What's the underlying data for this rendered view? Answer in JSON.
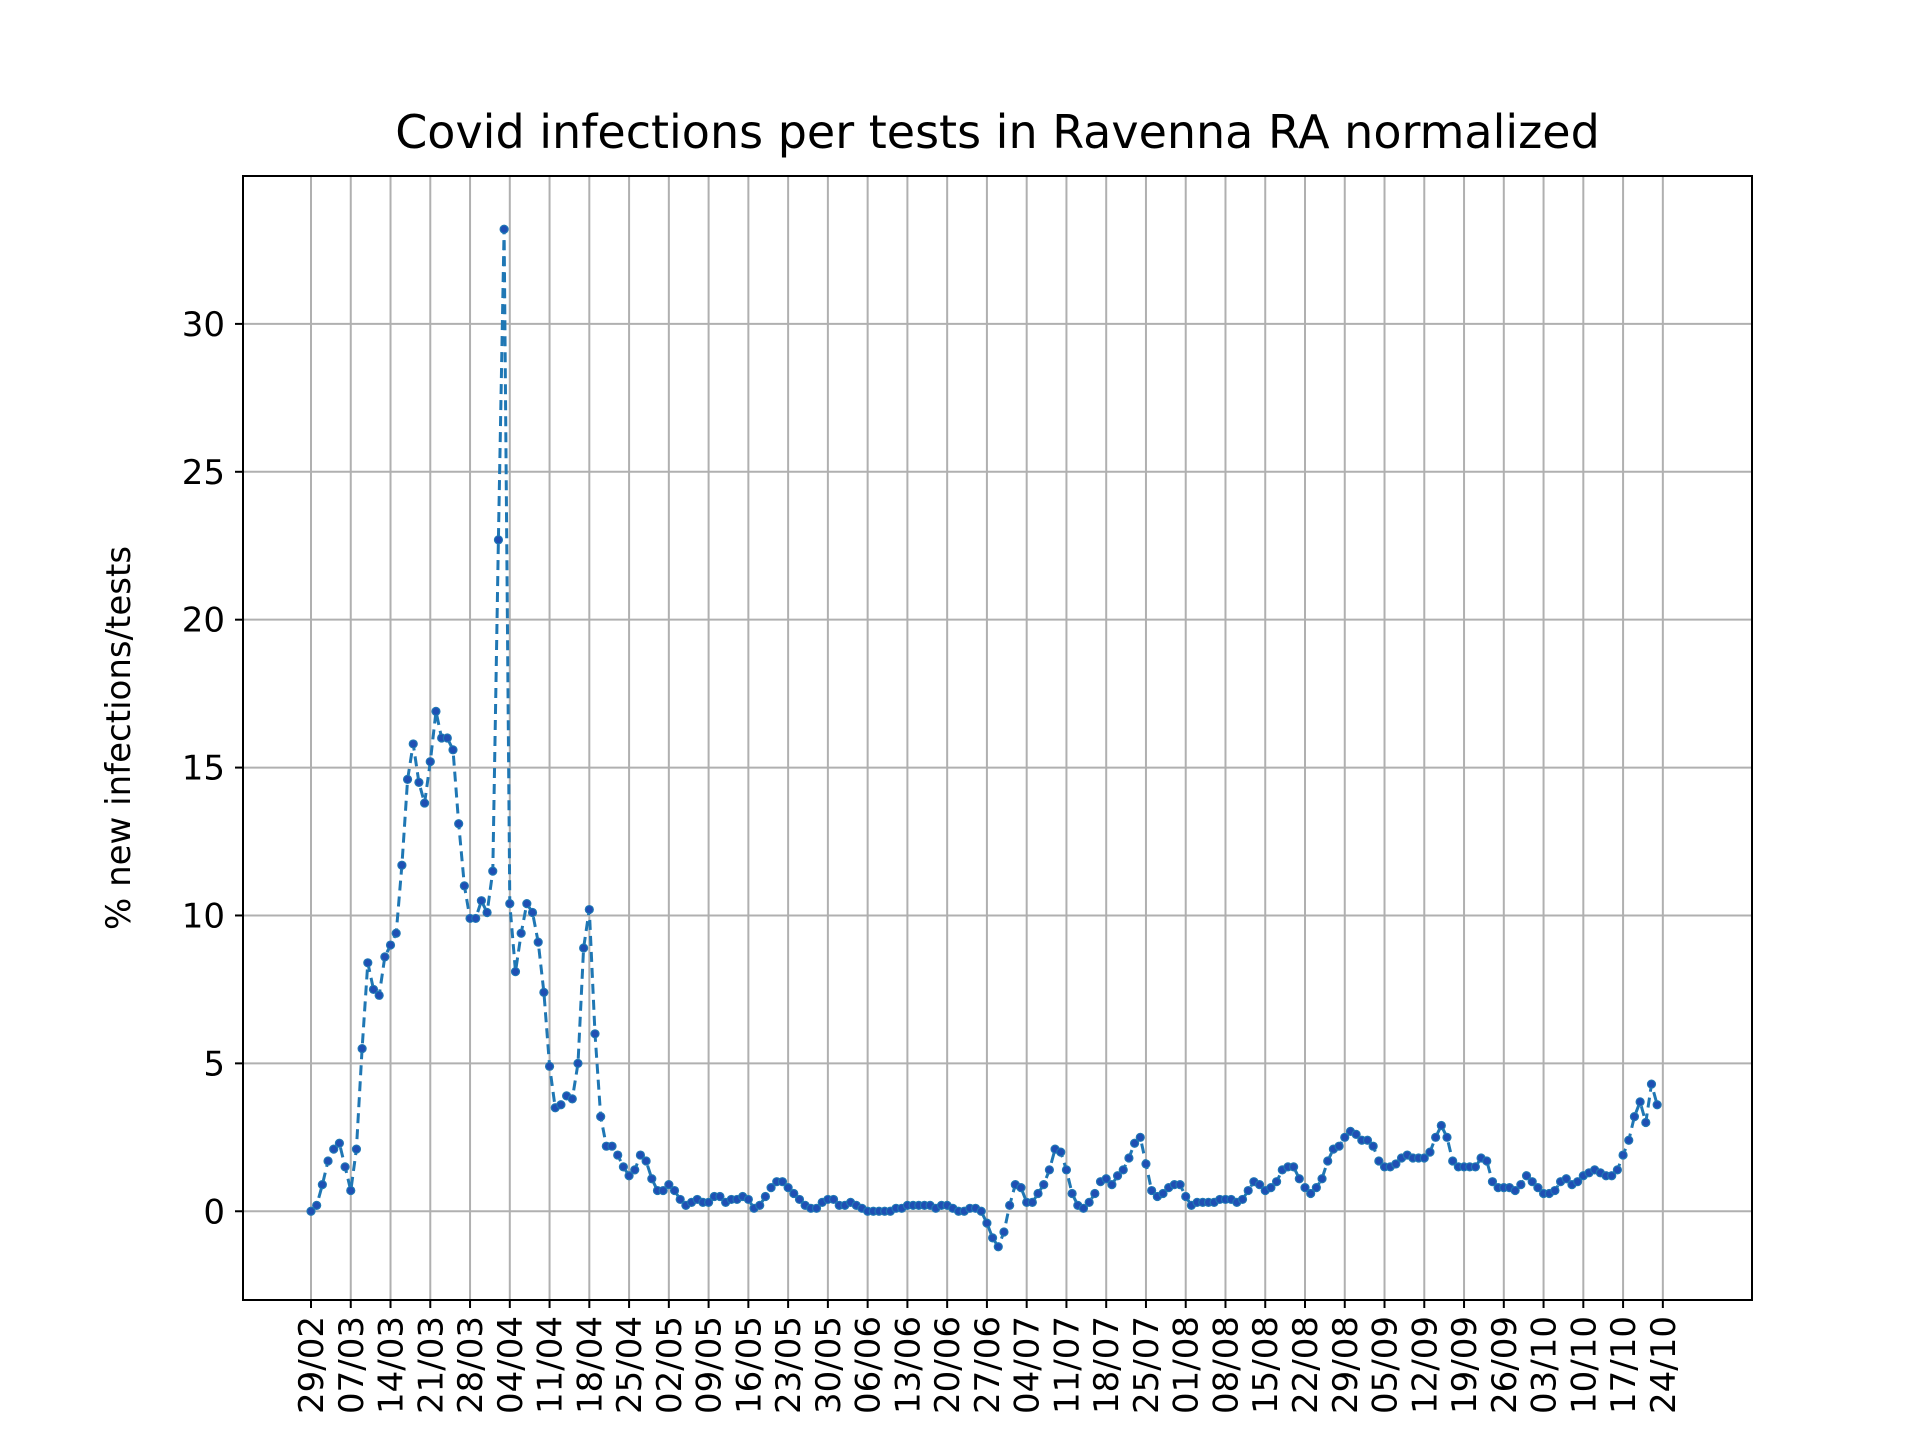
{
  "chart_data": {
    "type": "line",
    "title": "Covid infections per tests in Ravenna RA normalized",
    "xlabel": "",
    "ylabel": "% new infections/tests",
    "ylim": [
      -3,
      35
    ],
    "yticks": [
      0,
      5,
      10,
      15,
      20,
      25,
      30
    ],
    "grid": true,
    "legend": "none",
    "x_start": "29/02",
    "xticks": [
      "29/02",
      "07/03",
      "14/03",
      "21/03",
      "28/03",
      "04/04",
      "11/04",
      "18/04",
      "25/04",
      "02/05",
      "09/05",
      "16/05",
      "23/05",
      "30/05",
      "06/06",
      "13/06",
      "20/06",
      "27/06",
      "04/07",
      "11/07",
      "18/07",
      "25/07",
      "01/08",
      "08/08",
      "15/08",
      "22/08",
      "29/08",
      "05/09",
      "12/09",
      "19/09",
      "26/09",
      "03/10",
      "10/10",
      "17/10",
      "24/10"
    ],
    "series": [
      {
        "name": "",
        "color": "#1f77b4",
        "marker_color": "#1f4fb4",
        "values": [
          0.0,
          0.2,
          0.9,
          1.7,
          2.1,
          2.3,
          1.5,
          0.7,
          2.1,
          5.5,
          8.4,
          7.5,
          7.3,
          8.6,
          9.0,
          9.4,
          11.7,
          14.6,
          15.8,
          14.5,
          13.8,
          15.2,
          16.9,
          16.0,
          16.0,
          15.6,
          13.1,
          11.0,
          9.9,
          9.9,
          10.5,
          10.1,
          11.5,
          22.7,
          33.2,
          10.4,
          8.1,
          9.4,
          10.4,
          10.1,
          9.1,
          7.4,
          4.9,
          3.5,
          3.6,
          3.9,
          3.8,
          5.0,
          8.9,
          10.2,
          6.0,
          3.2,
          2.2,
          2.2,
          1.9,
          1.5,
          1.2,
          1.4,
          1.9,
          1.7,
          1.1,
          0.7,
          0.7,
          0.9,
          0.7,
          0.4,
          0.2,
          0.3,
          0.4,
          0.3,
          0.3,
          0.5,
          0.5,
          0.3,
          0.4,
          0.4,
          0.5,
          0.4,
          0.1,
          0.2,
          0.5,
          0.8,
          1.0,
          1.0,
          0.8,
          0.6,
          0.4,
          0.2,
          0.1,
          0.1,
          0.3,
          0.4,
          0.4,
          0.2,
          0.2,
          0.3,
          0.2,
          0.1,
          0.0,
          0.0,
          0.0,
          0.0,
          0.0,
          0.1,
          0.1,
          0.2,
          0.2,
          0.2,
          0.2,
          0.2,
          0.1,
          0.2,
          0.2,
          0.1,
          0.0,
          0.0,
          0.1,
          0.1,
          0.0,
          -0.4,
          -0.9,
          -1.2,
          -0.7,
          0.2,
          0.9,
          0.8,
          0.3,
          0.3,
          0.6,
          0.9,
          1.4,
          2.1,
          2.0,
          1.4,
          0.6,
          0.2,
          0.1,
          0.3,
          0.6,
          1.0,
          1.1,
          0.9,
          1.2,
          1.4,
          1.8,
          2.3,
          2.5,
          1.6,
          0.7,
          0.5,
          0.6,
          0.8,
          0.9,
          0.9,
          0.5,
          0.2,
          0.3,
          0.3,
          0.3,
          0.3,
          0.4,
          0.4,
          0.4,
          0.3,
          0.4,
          0.7,
          1.0,
          0.9,
          0.7,
          0.8,
          1.0,
          1.4,
          1.5,
          1.5,
          1.1,
          0.8,
          0.6,
          0.8,
          1.1,
          1.7,
          2.1,
          2.2,
          2.5,
          2.7,
          2.6,
          2.4,
          2.4,
          2.2,
          1.7,
          1.5,
          1.5,
          1.6,
          1.8,
          1.9,
          1.8,
          1.8,
          1.8,
          2.0,
          2.5,
          2.9,
          2.5,
          1.7,
          1.5,
          1.5,
          1.5,
          1.5,
          1.8,
          1.7,
          1.0,
          0.8,
          0.8,
          0.8,
          0.7,
          0.9,
          1.2,
          1.0,
          0.8,
          0.6,
          0.6,
          0.7,
          1.0,
          1.1,
          0.9,
          1.0,
          1.2,
          1.3,
          1.4,
          1.3,
          1.2,
          1.2,
          1.4,
          1.9,
          2.4,
          3.2,
          3.7,
          3.0,
          4.3,
          3.6
        ]
      }
    ]
  }
}
